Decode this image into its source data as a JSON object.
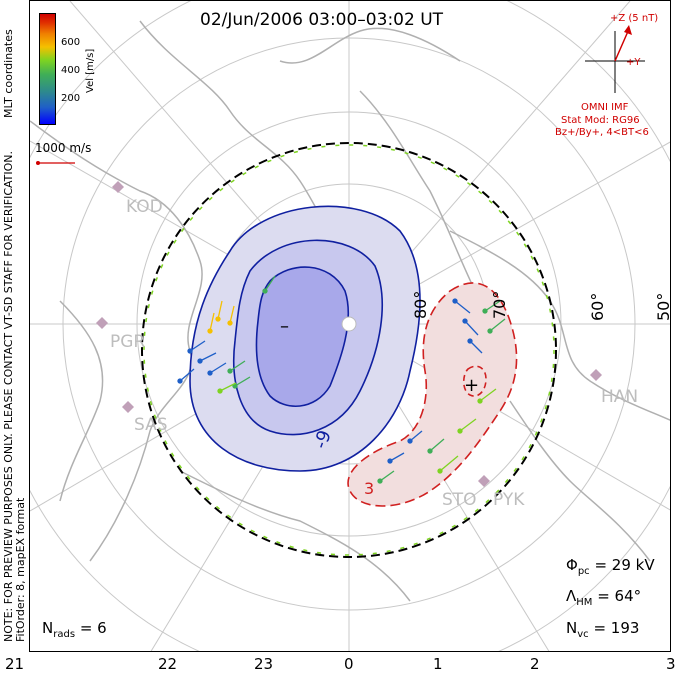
{
  "header": {
    "title": "02/Jun/2006 03:00–03:02 UT"
  },
  "side_text": {
    "coords": "MLT coordinates",
    "notice": "NOTE: FOR PREVIEW PURPOSES ONLY. PLEASE CONTACT VT-SD STAFF FOR VERIFICATION.",
    "fit": "FitOrder: 8, mapEX format"
  },
  "colorbar": {
    "label": "Vel [m/s]",
    "ticks": [
      "600",
      "400",
      "200"
    ],
    "colors": [
      "#0000ff",
      "#1f5fc8",
      "#2e8b8b",
      "#3fae57",
      "#7ed321",
      "#f5c000",
      "#f08000",
      "#e03000",
      "#d00000"
    ]
  },
  "scale": {
    "label": "1000 m/s"
  },
  "imf": {
    "z_label": "+Z (5 nT)",
    "y_label": "+Y",
    "source": "OMNI IMF",
    "model": "Stat Mod: RG96",
    "condition": "Bz+/By+, 4<BT<6"
  },
  "stations": [
    "KOD",
    "PGR",
    "SAS",
    "HAN",
    "STO",
    "PYK"
  ],
  "latitudes": [
    "80°",
    "70°",
    "60°",
    "50°"
  ],
  "contours": {
    "minus_label": "–",
    "plus_label": "+",
    "neg_value": "-9",
    "pos_value": "3"
  },
  "stats": {
    "phi_symbol": "Φ",
    "phi_sub": "pc",
    "phi_value": "= 29 kV",
    "lambda_symbol": "Λ",
    "lambda_sub": "HM",
    "lambda_value": "= 64°",
    "nvc_symbol": "N",
    "nvc_sub": "vc",
    "nvc_value": "= 193",
    "nrads_symbol": "N",
    "nrads_sub": "rads",
    "nrads_value": "= 6"
  },
  "mlt_axis": [
    "21",
    "22",
    "23",
    "0",
    "1",
    "2",
    "3"
  ]
}
